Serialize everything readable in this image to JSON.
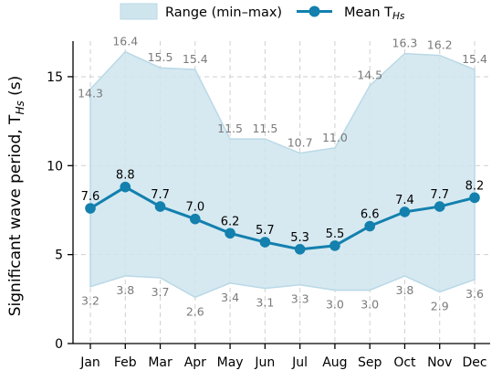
{
  "chart_data": {
    "type": "line",
    "categories": [
      "Jan",
      "Feb",
      "Mar",
      "Apr",
      "May",
      "Jun",
      "Jul",
      "Aug",
      "Sep",
      "Oct",
      "Nov",
      "Dec"
    ],
    "series": [
      {
        "name": "Mean T",
        "name_sub": "Hs",
        "values": [
          7.6,
          8.8,
          7.7,
          7.0,
          6.2,
          5.7,
          5.3,
          5.5,
          6.6,
          7.4,
          7.7,
          8.2
        ]
      }
    ],
    "range": {
      "name": "Range (min–max)",
      "min": [
        3.2,
        3.8,
        3.7,
        2.6,
        3.4,
        3.1,
        3.3,
        3.0,
        3.0,
        3.8,
        2.9,
        3.6
      ],
      "max": [
        14.3,
        16.4,
        15.5,
        15.4,
        11.5,
        11.5,
        10.7,
        11.0,
        14.5,
        16.3,
        16.2,
        15.4
      ]
    },
    "ylabel": "Significant wave period, T",
    "ylabel_sub": "Hs",
    "ylabel_unit": " (s)",
    "ylim": [
      0,
      17
    ],
    "yticks": [
      0,
      5,
      10,
      15
    ],
    "grid": true,
    "legend_position": "top-center",
    "colors": {
      "mean": "#1380ae",
      "range": "#cfe5ee"
    }
  }
}
